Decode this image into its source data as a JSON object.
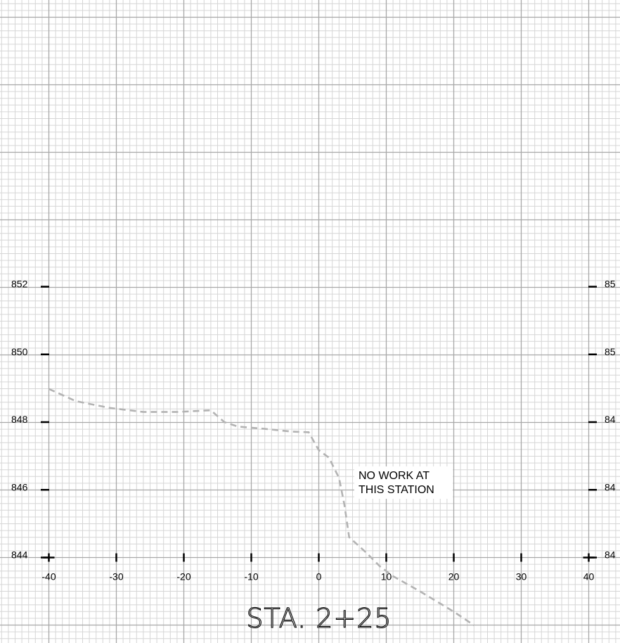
{
  "chart_data": {
    "type": "line",
    "title": "STA.  2+25",
    "xlabel": "",
    "ylabel": "",
    "xlim": [
      -40,
      40
    ],
    "ylim": [
      844,
      852
    ],
    "x_ticks": [
      "-40",
      "-30",
      "-20",
      "-10",
      "0",
      "10",
      "20",
      "30",
      "40"
    ],
    "y_ticks_left": [
      "852",
      "850",
      "848",
      "846",
      "844"
    ],
    "y_ticks_right": [
      "85",
      "85",
      "84",
      "84",
      "84"
    ],
    "grid": true,
    "series": [
      {
        "style": "dashed",
        "color": "#b3b3b3",
        "x": [
          -40,
          -36,
          -31,
          -26,
          -21,
          -16,
          -14,
          -12,
          -8,
          -4,
          -1.5,
          0,
          1.5,
          3,
          3.8,
          4.5,
          7,
          9,
          11,
          15,
          20,
          23
        ],
        "y": [
          848.98,
          848.62,
          848.42,
          848.3,
          848.3,
          848.35,
          848.0,
          847.87,
          847.8,
          847.72,
          847.7,
          847.17,
          846.95,
          846.35,
          845.55,
          844.6,
          844.15,
          843.75,
          843.45,
          843.0,
          842.4,
          842.0
        ]
      }
    ],
    "annotations": [
      "NO WORK AT",
      "THIS STATION"
    ]
  },
  "colors": {
    "minor_grid": "#d6d6d6",
    "major_grid": "#a8a8a8",
    "profile": "#b3b3b3",
    "ink": "#000000"
  }
}
